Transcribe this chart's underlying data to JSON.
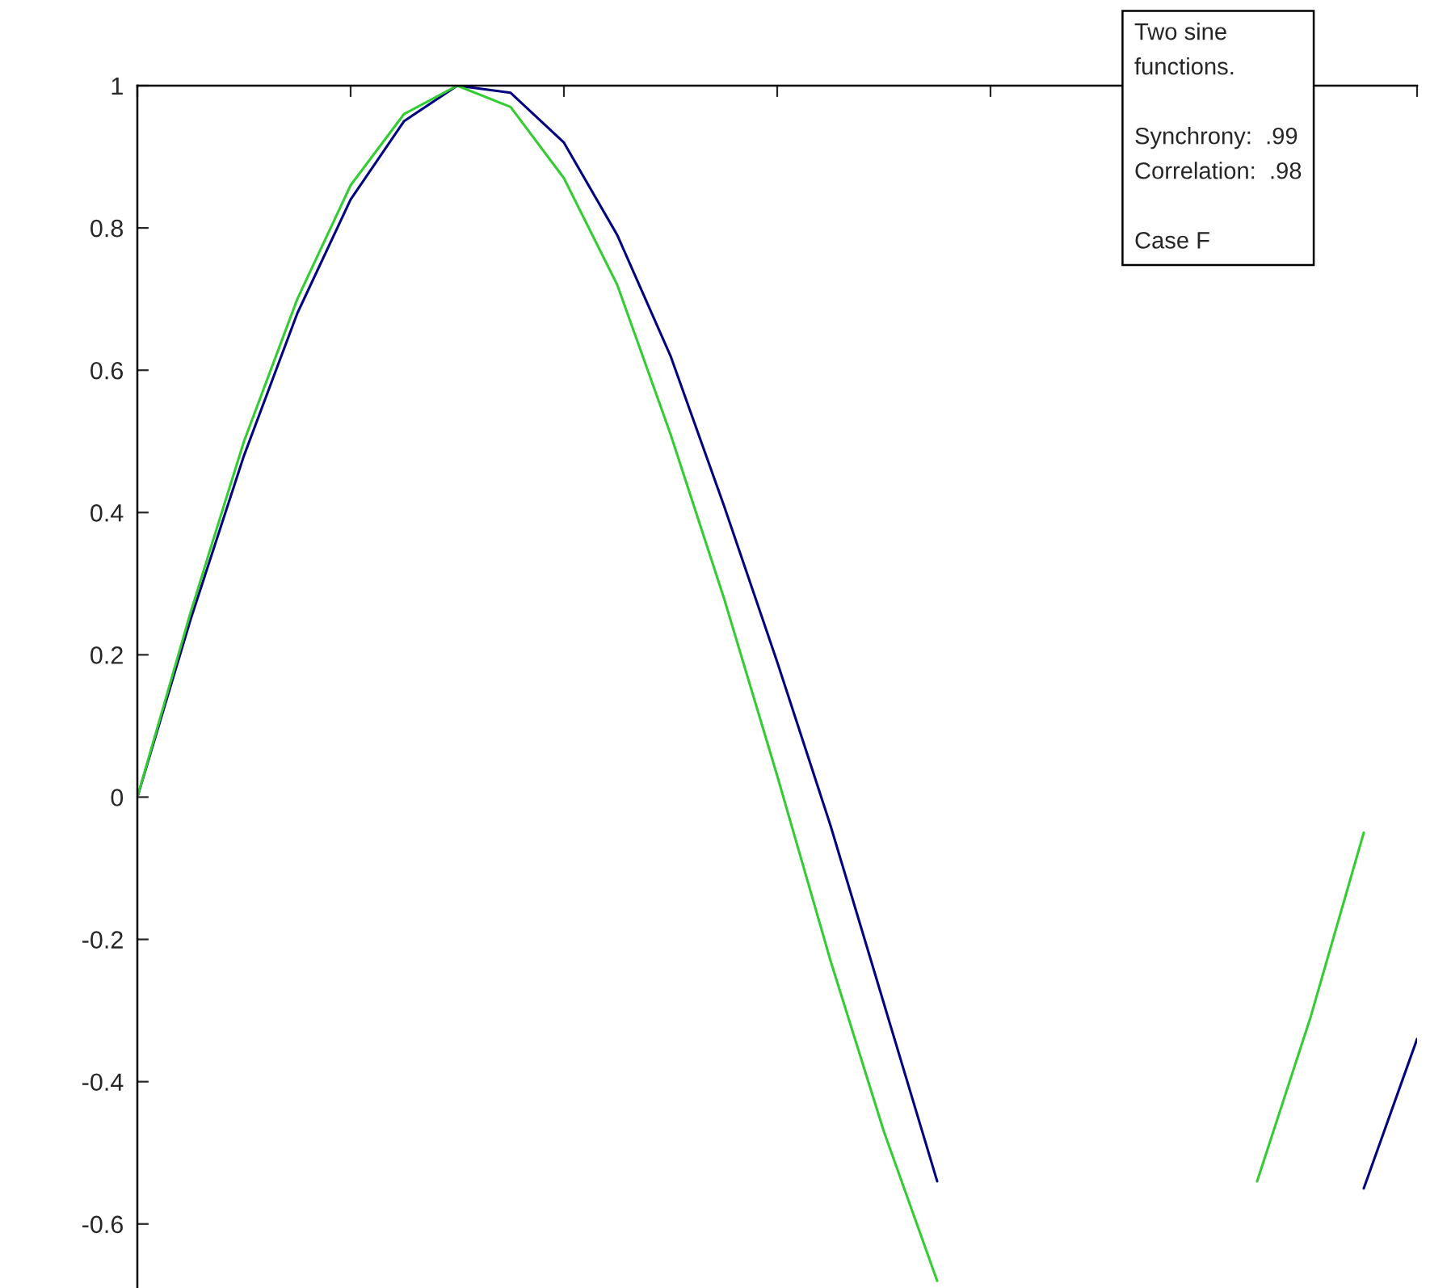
{
  "chart_data": {
    "type": "line",
    "annotations": [
      "Two sine\nfunctions.\n\nSynchrony:  .99\nCorrelation:  .98\n\nCase F"
    ],
    "categories": [
      null,
      null,
      null,
      null,
      null,
      null,
      null,
      null,
      null,
      null,
      null,
      null,
      null,
      null,
      null,
      null,
      null,
      null,
      null,
      null,
      null,
      null,
      null,
      null,
      null
    ],
    "ylim": [
      -0.69,
      1
    ],
    "yticks": [
      -0.6,
      -0.4,
      -0.2,
      0,
      0.2,
      0.4,
      0.6,
      0.8,
      1
    ],
    "tick_labels": "y",
    "series": [
      {
        "color": "#000080",
        "values": [
          0,
          0.25,
          0.48,
          0.68,
          0.84,
          0.95,
          1,
          0.99,
          0.92,
          0.79,
          0.62,
          0.41,
          0.19,
          -0.04,
          -0.29,
          -0.54,
          null,
          null,
          null,
          null,
          null,
          null,
          null,
          null,
          null
        ]
      },
      {
        "color": "#33cc33",
        "values": [
          0,
          0.26,
          0.5,
          0.7,
          0.86,
          0.96,
          1,
          0.97,
          0.87,
          0.72,
          0.51,
          0.28,
          0.03,
          -0.23,
          -0.47,
          -0.68,
          null,
          null,
          null,
          null,
          null,
          null,
          null,
          null,
          null
        ]
      },
      {
        "color": "#000081",
        "values": [
          null,
          null,
          null,
          null,
          null,
          null,
          null,
          null,
          null,
          null,
          null,
          null,
          null,
          null,
          null,
          null,
          null,
          null,
          null,
          null,
          null,
          null,
          null,
          -0.55,
          -0.34
        ]
      },
      {
        "color": "#34cc33",
        "values": [
          null,
          null,
          null,
          null,
          null,
          null,
          null,
          null,
          null,
          null,
          null,
          null,
          null,
          null,
          null,
          null,
          null,
          null,
          null,
          null,
          null,
          -0.54,
          -0.31,
          -0.05,
          null
        ]
      }
    ]
  }
}
